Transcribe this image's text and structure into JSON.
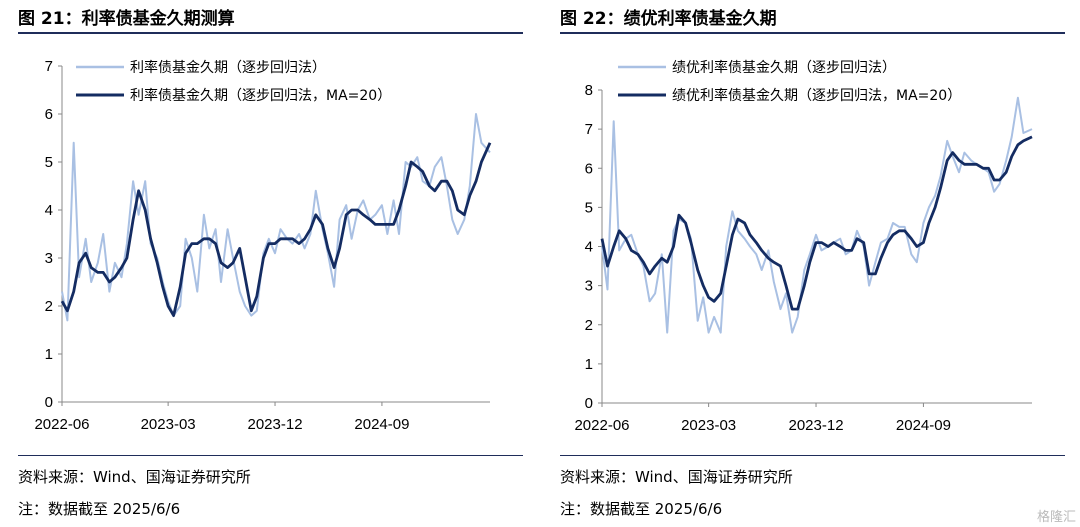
{
  "watermark": "格隆汇",
  "charts": [
    {
      "title": "图 21：利率债基金久期测算",
      "source": "资料来源：Wind、国海证券研究所",
      "note": "注：数据截至 2025/6/6"
    },
    {
      "title": "图 22：绩优利率债基金久期",
      "source": "资料来源：Wind、国海证券研究所",
      "note": "注：数据截至 2025/6/6"
    }
  ],
  "chart_data": [
    {
      "type": "line",
      "x_ticks": [
        "2022-06",
        "2023-03",
        "2023-12",
        "2024-09"
      ],
      "xlim": [
        "2022-06-01",
        "2025-06-06"
      ],
      "ylim": [
        0,
        7
      ],
      "y_ticks": [
        "0",
        "1",
        "2",
        "3",
        "4",
        "5",
        "6",
        "7"
      ],
      "legend_position": "top-left",
      "grid": false,
      "series": [
        {
          "name": "利率债基金久期（逐步回归法）",
          "color": "#a9c0e3",
          "x": [
            "2022-06-01",
            "2022-06-15",
            "2022-07-01",
            "2022-07-15",
            "2022-08-01",
            "2022-08-15",
            "2022-09-01",
            "2022-09-15",
            "2022-10-01",
            "2022-10-15",
            "2022-11-01",
            "2022-11-15",
            "2022-12-01",
            "2022-12-15",
            "2023-01-01",
            "2023-01-15",
            "2023-02-01",
            "2023-02-15",
            "2023-03-01",
            "2023-03-15",
            "2023-04-01",
            "2023-04-15",
            "2023-05-01",
            "2023-05-15",
            "2023-06-01",
            "2023-06-15",
            "2023-07-01",
            "2023-07-15",
            "2023-08-01",
            "2023-08-15",
            "2023-09-01",
            "2023-09-15",
            "2023-10-01",
            "2023-10-15",
            "2023-11-01",
            "2023-11-15",
            "2023-12-01",
            "2023-12-15",
            "2024-01-01",
            "2024-01-15",
            "2024-02-01",
            "2024-02-15",
            "2024-03-01",
            "2024-03-15",
            "2024-04-01",
            "2024-04-15",
            "2024-05-01",
            "2024-05-15",
            "2024-06-01",
            "2024-06-15",
            "2024-07-01",
            "2024-07-15",
            "2024-08-01",
            "2024-08-15",
            "2024-09-01",
            "2024-09-15",
            "2024-10-01",
            "2024-10-15",
            "2024-11-01",
            "2024-11-15",
            "2024-12-01",
            "2024-12-15",
            "2025-01-01",
            "2025-01-15",
            "2025-02-01",
            "2025-02-15",
            "2025-03-01",
            "2025-03-15",
            "2025-04-01",
            "2025-04-15",
            "2025-05-01",
            "2025-05-15",
            "2025-06-06"
          ],
          "values": [
            2.3,
            1.7,
            5.4,
            2.6,
            3.4,
            2.5,
            2.9,
            3.5,
            2.3,
            2.9,
            2.6,
            3.3,
            4.6,
            3.9,
            4.6,
            3.3,
            3.0,
            2.5,
            2.1,
            1.8,
            2.0,
            3.4,
            3.0,
            2.3,
            3.9,
            3.2,
            3.6,
            2.5,
            3.6,
            3.0,
            2.3,
            2.0,
            1.8,
            1.9,
            3.1,
            3.4,
            3.1,
            3.6,
            3.4,
            3.3,
            3.5,
            3.2,
            3.5,
            4.4,
            3.6,
            3.1,
            2.4,
            3.8,
            4.1,
            3.4,
            4.0,
            4.2,
            3.8,
            3.9,
            4.1,
            3.5,
            4.2,
            3.5,
            5.0,
            4.9,
            5.1,
            4.6,
            4.5,
            4.9,
            5.1,
            4.5,
            3.8,
            3.5,
            3.8,
            4.5,
            6.0,
            5.4,
            5.2
          ]
        },
        {
          "name": "利率债基金久期（逐步回归法，MA=20）",
          "color": "#142c62",
          "x": [
            "2022-06-01",
            "2022-06-15",
            "2022-07-01",
            "2022-07-15",
            "2022-08-01",
            "2022-08-15",
            "2022-09-01",
            "2022-09-15",
            "2022-10-01",
            "2022-10-15",
            "2022-11-01",
            "2022-11-15",
            "2022-12-01",
            "2022-12-15",
            "2023-01-01",
            "2023-01-15",
            "2023-02-01",
            "2023-02-15",
            "2023-03-01",
            "2023-03-15",
            "2023-04-01",
            "2023-04-15",
            "2023-05-01",
            "2023-05-15",
            "2023-06-01",
            "2023-06-15",
            "2023-07-01",
            "2023-07-15",
            "2023-08-01",
            "2023-08-15",
            "2023-09-01",
            "2023-09-15",
            "2023-10-01",
            "2023-10-15",
            "2023-11-01",
            "2023-11-15",
            "2023-12-01",
            "2023-12-15",
            "2024-01-01",
            "2024-01-15",
            "2024-02-01",
            "2024-02-15",
            "2024-03-01",
            "2024-03-15",
            "2024-04-01",
            "2024-04-15",
            "2024-05-01",
            "2024-05-15",
            "2024-06-01",
            "2024-06-15",
            "2024-07-01",
            "2024-07-15",
            "2024-08-01",
            "2024-08-15",
            "2024-09-01",
            "2024-09-15",
            "2024-10-01",
            "2024-10-15",
            "2024-11-01",
            "2024-11-15",
            "2024-12-01",
            "2024-12-15",
            "2025-01-01",
            "2025-01-15",
            "2025-02-01",
            "2025-02-15",
            "2025-03-01",
            "2025-03-15",
            "2025-04-01",
            "2025-04-15",
            "2025-05-01",
            "2025-05-15",
            "2025-06-06"
          ],
          "values": [
            2.1,
            1.9,
            2.3,
            2.9,
            3.1,
            2.8,
            2.7,
            2.7,
            2.5,
            2.6,
            2.8,
            3.0,
            3.8,
            4.4,
            4.0,
            3.4,
            2.9,
            2.4,
            2.0,
            1.8,
            2.4,
            3.1,
            3.3,
            3.3,
            3.4,
            3.4,
            3.3,
            2.9,
            2.8,
            2.9,
            3.2,
            2.6,
            1.9,
            2.2,
            3.0,
            3.3,
            3.3,
            3.4,
            3.4,
            3.4,
            3.3,
            3.4,
            3.6,
            3.9,
            3.7,
            3.2,
            2.8,
            3.2,
            3.9,
            4.0,
            4.0,
            3.9,
            3.8,
            3.7,
            3.7,
            3.7,
            3.7,
            4.0,
            4.5,
            5.0,
            4.9,
            4.8,
            4.5,
            4.4,
            4.6,
            4.6,
            4.4,
            4.0,
            3.9,
            4.3,
            4.6,
            5.0,
            5.4
          ]
        }
      ]
    },
    {
      "type": "line",
      "x_ticks": [
        "2022-06",
        "2023-03",
        "2023-12",
        "2024-09"
      ],
      "xlim": [
        "2022-06-01",
        "2025-06-06"
      ],
      "ylim": [
        0,
        8
      ],
      "y_ticks": [
        "0",
        "1",
        "2",
        "3",
        "4",
        "5",
        "6",
        "7",
        "8"
      ],
      "legend_position": "top-left",
      "grid": false,
      "series": [
        {
          "name": "绩优利率债基金久期（逐步回归法）",
          "color": "#a9c0e3",
          "x": [
            "2022-06-01",
            "2022-06-15",
            "2022-07-01",
            "2022-07-15",
            "2022-08-01",
            "2022-08-15",
            "2022-09-01",
            "2022-09-15",
            "2022-10-01",
            "2022-10-15",
            "2022-11-01",
            "2022-11-15",
            "2022-12-01",
            "2022-12-15",
            "2023-01-01",
            "2023-01-15",
            "2023-02-01",
            "2023-02-15",
            "2023-03-01",
            "2023-03-15",
            "2023-04-01",
            "2023-04-15",
            "2023-05-01",
            "2023-05-15",
            "2023-06-01",
            "2023-06-15",
            "2023-07-01",
            "2023-07-15",
            "2023-08-01",
            "2023-08-15",
            "2023-09-01",
            "2023-09-15",
            "2023-10-01",
            "2023-10-15",
            "2023-11-01",
            "2023-11-15",
            "2023-12-01",
            "2023-12-15",
            "2024-01-01",
            "2024-01-15",
            "2024-02-01",
            "2024-02-15",
            "2024-03-01",
            "2024-03-15",
            "2024-04-01",
            "2024-04-15",
            "2024-05-01",
            "2024-05-15",
            "2024-06-01",
            "2024-06-15",
            "2024-07-01",
            "2024-07-15",
            "2024-08-01",
            "2024-08-15",
            "2024-09-01",
            "2024-09-15",
            "2024-10-01",
            "2024-10-15",
            "2024-11-01",
            "2024-11-15",
            "2024-12-01",
            "2024-12-15",
            "2025-01-01",
            "2025-01-15",
            "2025-02-01",
            "2025-02-15",
            "2025-03-01",
            "2025-03-15",
            "2025-04-01",
            "2025-04-15",
            "2025-05-01",
            "2025-05-15",
            "2025-06-06"
          ],
          "values": [
            4.0,
            2.9,
            7.2,
            3.9,
            4.2,
            4.3,
            3.8,
            3.5,
            2.6,
            2.8,
            3.8,
            1.8,
            4.4,
            4.7,
            4.6,
            4.2,
            2.1,
            2.7,
            1.8,
            2.2,
            1.8,
            4.0,
            4.9,
            4.4,
            4.2,
            4.0,
            3.8,
            3.4,
            3.9,
            3.1,
            2.4,
            2.8,
            1.8,
            2.2,
            3.4,
            3.8,
            4.3,
            3.9,
            4.0,
            4.1,
            4.2,
            3.8,
            3.9,
            4.4,
            4.0,
            3.0,
            3.6,
            4.1,
            4.2,
            4.6,
            4.5,
            4.5,
            3.8,
            3.6,
            4.6,
            5.0,
            5.3,
            5.8,
            6.7,
            6.3,
            5.9,
            6.4,
            6.2,
            6.1,
            6.0,
            5.9,
            5.4,
            5.6,
            6.2,
            6.8,
            7.8,
            6.9,
            7.0
          ]
        },
        {
          "name": "绩优利率债基金久期（逐步回归法，MA=20）",
          "color": "#142c62",
          "x": [
            "2022-06-01",
            "2022-06-15",
            "2022-07-01",
            "2022-07-15",
            "2022-08-01",
            "2022-08-15",
            "2022-09-01",
            "2022-09-15",
            "2022-10-01",
            "2022-10-15",
            "2022-11-01",
            "2022-11-15",
            "2022-12-01",
            "2022-12-15",
            "2023-01-01",
            "2023-01-15",
            "2023-02-01",
            "2023-02-15",
            "2023-03-01",
            "2023-03-15",
            "2023-04-01",
            "2023-04-15",
            "2023-05-01",
            "2023-05-15",
            "2023-06-01",
            "2023-06-15",
            "2023-07-01",
            "2023-07-15",
            "2023-08-01",
            "2023-08-15",
            "2023-09-01",
            "2023-09-15",
            "2023-10-01",
            "2023-10-15",
            "2023-11-01",
            "2023-11-15",
            "2023-12-01",
            "2023-12-15",
            "2024-01-01",
            "2024-01-15",
            "2024-02-01",
            "2024-02-15",
            "2024-03-01",
            "2024-03-15",
            "2024-04-01",
            "2024-04-15",
            "2024-05-01",
            "2024-05-15",
            "2024-06-01",
            "2024-06-15",
            "2024-07-01",
            "2024-07-15",
            "2024-08-01",
            "2024-08-15",
            "2024-09-01",
            "2024-09-15",
            "2024-10-01",
            "2024-10-15",
            "2024-11-01",
            "2024-11-15",
            "2024-12-01",
            "2024-12-15",
            "2025-01-01",
            "2025-01-15",
            "2025-02-01",
            "2025-02-15",
            "2025-03-01",
            "2025-03-15",
            "2025-04-01",
            "2025-04-15",
            "2025-05-01",
            "2025-05-15",
            "2025-06-06"
          ],
          "values": [
            4.2,
            3.5,
            4.0,
            4.4,
            4.2,
            3.9,
            3.8,
            3.6,
            3.3,
            3.5,
            3.7,
            3.6,
            4.0,
            4.8,
            4.6,
            4.1,
            3.4,
            3.0,
            2.7,
            2.6,
            2.8,
            3.5,
            4.3,
            4.7,
            4.6,
            4.3,
            4.1,
            3.9,
            3.7,
            3.6,
            3.5,
            3.0,
            2.4,
            2.4,
            3.0,
            3.6,
            4.1,
            4.1,
            4.0,
            4.1,
            4.0,
            3.9,
            3.9,
            4.2,
            4.1,
            3.3,
            3.3,
            3.7,
            4.1,
            4.3,
            4.4,
            4.4,
            4.2,
            4.0,
            4.1,
            4.6,
            5.0,
            5.5,
            6.2,
            6.4,
            6.2,
            6.1,
            6.1,
            6.1,
            6.0,
            6.0,
            5.7,
            5.7,
            5.9,
            6.3,
            6.6,
            6.7,
            6.8
          ]
        }
      ]
    }
  ]
}
